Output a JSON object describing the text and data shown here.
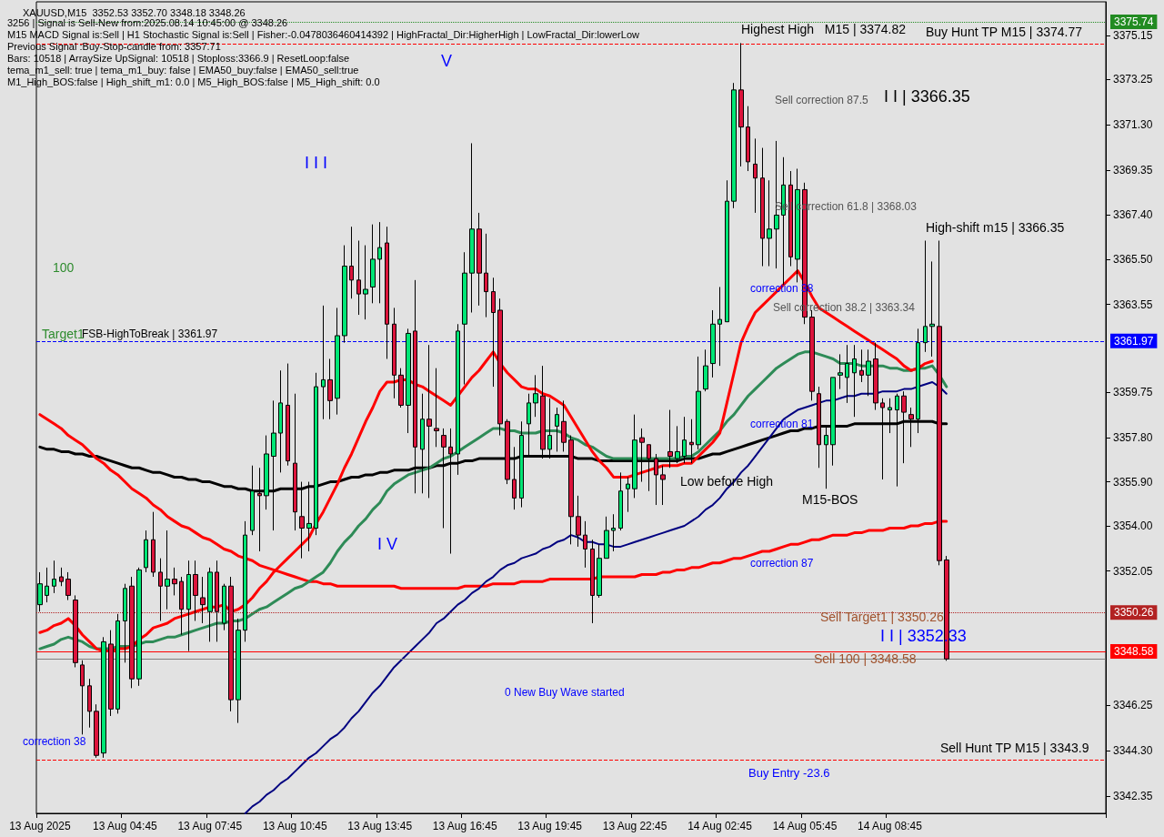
{
  "chart_data": {
    "type": "candlestick",
    "title": "XAUUSD,M15  3352.53 3352.70 3348.18 3348.26",
    "categories": [
      "13 Aug 2025",
      null,
      null,
      null,
      null,
      null,
      null,
      null,
      null,
      null,
      null,
      null,
      "13 Aug 04:45",
      null,
      null,
      null,
      null,
      null,
      null,
      null,
      null,
      null,
      null,
      null,
      "13 Aug 07:45",
      null,
      null,
      null,
      null,
      null,
      null,
      null,
      null,
      null,
      null,
      null,
      "13 Aug 10:45",
      null,
      null,
      null,
      null,
      null,
      null,
      null,
      null,
      null,
      null,
      null,
      "13 Aug 13:45",
      null,
      null,
      null,
      null,
      null,
      null,
      null,
      null,
      null,
      null,
      null,
      "13 Aug 16:45",
      null,
      null,
      null,
      null,
      null,
      null,
      null,
      null,
      null,
      null,
      null,
      "13 Aug 19:45",
      null,
      null,
      null,
      null,
      null,
      null,
      null,
      null,
      null,
      null,
      null,
      "13 Aug 22:45",
      null,
      null,
      null,
      null,
      null,
      null,
      null,
      null,
      null,
      null,
      null,
      "14 Aug 02:45",
      null,
      null,
      null,
      null,
      null,
      null,
      null,
      null,
      null,
      null,
      null,
      "14 Aug 05:45",
      null,
      null,
      null,
      null,
      null,
      null,
      null,
      null,
      null,
      null,
      null,
      "14 Aug 08:45",
      null,
      null,
      null,
      null,
      null,
      null,
      null,
      null
    ],
    "ohlc": [
      [
        3350.6,
        3352.0,
        3350.3,
        3351.5
      ],
      [
        3351.0,
        3352.2,
        3350.7,
        3351.4
      ],
      [
        3351.4,
        3352.5,
        3351.1,
        3351.7
      ],
      [
        3351.8,
        3352.2,
        3351.4,
        3351.6
      ],
      [
        3351.7,
        3352.0,
        3350.8,
        3351.0
      ],
      [
        3350.8,
        3351.0,
        3347.9,
        3348.1
      ],
      [
        3348.0,
        3348.2,
        3345.0,
        3347.1
      ],
      [
        3347.1,
        3347.4,
        3345.3,
        3346.0
      ],
      [
        3346.0,
        3346.3,
        3344.0,
        3344.1
      ],
      [
        3344.2,
        3349.2,
        3344.0,
        3349.0
      ],
      [
        3348.9,
        3349.5,
        3345.8,
        3346.1
      ],
      [
        3346.1,
        3350.2,
        3345.9,
        3349.9
      ],
      [
        3349.9,
        3351.5,
        3348.1,
        3351.3
      ],
      [
        3351.4,
        3351.8,
        3347.0,
        3347.4
      ],
      [
        3347.4,
        3352.2,
        3347.1,
        3352.1
      ],
      [
        3352.2,
        3353.8,
        3352.0,
        3353.4
      ],
      [
        3353.4,
        3354.6,
        3351.8,
        3352.0
      ],
      [
        3352.0,
        3352.6,
        3349.9,
        3351.4
      ],
      [
        3351.4,
        3353.8,
        3350.4,
        3351.7
      ],
      [
        3351.7,
        3352.2,
        3351.0,
        3351.5
      ],
      [
        3351.6,
        3351.8,
        3349.3,
        3350.4
      ],
      [
        3350.4,
        3352.5,
        3348.6,
        3351.9
      ],
      [
        3351.9,
        3352.5,
        3349.9,
        3351.0
      ],
      [
        3350.9,
        3351.8,
        3349.8,
        3350.6
      ],
      [
        3350.3,
        3352.2,
        3349.0,
        3352.0
      ],
      [
        3352.0,
        3352.5,
        3349.0,
        3350.3
      ],
      [
        3349.8,
        3351.5,
        3349.5,
        3351.4
      ],
      [
        3351.4,
        3351.8,
        3346.0,
        3346.5
      ],
      [
        3346.5,
        3350.0,
        3345.5,
        3349.5
      ],
      [
        3349.5,
        3354.2,
        3349.0,
        3353.6
      ],
      [
        3353.8,
        3356.6,
        3353.6,
        3355.5
      ],
      [
        3355.4,
        3356.5,
        3352.9,
        3355.3
      ],
      [
        3355.3,
        3357.9,
        3354.7,
        3357.1
      ],
      [
        3357.0,
        3359.4,
        3353.8,
        3358.0
      ],
      [
        3358.0,
        3360.7,
        3356.3,
        3359.3
      ],
      [
        3359.2,
        3361.0,
        3356.6,
        3356.8
      ],
      [
        3356.7,
        3359.7,
        3353.8,
        3354.6
      ],
      [
        3354.4,
        3355.9,
        3352.6,
        3353.9
      ],
      [
        3353.9,
        3355.9,
        3352.9,
        3354.1
      ],
      [
        3353.9,
        3360.6,
        3353.6,
        3360.0
      ],
      [
        3360.0,
        3363.5,
        3358.6,
        3360.3
      ],
      [
        3360.3,
        3361.2,
        3358.6,
        3359.4
      ],
      [
        3359.5,
        3363.4,
        3358.8,
        3362.2
      ],
      [
        3362.2,
        3366.1,
        3361.9,
        3365.2
      ],
      [
        3365.2,
        3366.9,
        3363.8,
        3364.6
      ],
      [
        3364.6,
        3366.3,
        3363.1,
        3364.0
      ],
      [
        3364.0,
        3366.1,
        3362.9,
        3364.2
      ],
      [
        3364.3,
        3367.0,
        3363.6,
        3365.5
      ],
      [
        3365.5,
        3367.1,
        3363.6,
        3366.0
      ],
      [
        3366.2,
        3366.9,
        3361.2,
        3362.7
      ],
      [
        3362.7,
        3363.4,
        3359.5,
        3360.5
      ],
      [
        3360.5,
        3360.8,
        3359.1,
        3359.2
      ],
      [
        3359.2,
        3362.5,
        3358.0,
        3362.3
      ],
      [
        3362.4,
        3364.6,
        3355.4,
        3357.4
      ],
      [
        3357.3,
        3359.7,
        3355.4,
        3358.6
      ],
      [
        3358.6,
        3361.8,
        3355.2,
        3358.3
      ],
      [
        3358.2,
        3360.8,
        3357.4,
        3358.1
      ],
      [
        3357.9,
        3358.2,
        3353.9,
        3357.4
      ],
      [
        3357.4,
        3358.2,
        3352.8,
        3357.1
      ],
      [
        3357.1,
        3362.7,
        3356.2,
        3362.4
      ],
      [
        3362.7,
        3365.8,
        3360.1,
        3364.9
      ],
      [
        3364.9,
        3370.5,
        3363.2,
        3366.8
      ],
      [
        3366.8,
        3367.5,
        3363.5,
        3364.9
      ],
      [
        3364.9,
        3366.6,
        3363.0,
        3364.1
      ],
      [
        3364.1,
        3364.7,
        3360.0,
        3363.2
      ],
      [
        3363.3,
        3363.8,
        3357.9,
        3358.4
      ],
      [
        3358.5,
        3358.6,
        3355.8,
        3356.0
      ],
      [
        3356.0,
        3357.4,
        3354.7,
        3355.2
      ],
      [
        3355.2,
        3358.5,
        3354.8,
        3357.9
      ],
      [
        3358.4,
        3359.7,
        3357.0,
        3359.3
      ],
      [
        3359.3,
        3360.5,
        3358.7,
        3359.7
      ],
      [
        3359.6,
        3360.9,
        3356.9,
        3357.3
      ],
      [
        3357.3,
        3359.5,
        3356.9,
        3357.9
      ],
      [
        3358.3,
        3359.1,
        3357.2,
        3358.8
      ],
      [
        3358.5,
        3359.4,
        3357.2,
        3357.6
      ],
      [
        3357.7,
        3357.9,
        3353.2,
        3354.4
      ],
      [
        3354.4,
        3355.3,
        3353.1,
        3353.6
      ],
      [
        3353.6,
        3354.2,
        3352.2,
        3353.0
      ],
      [
        3353.0,
        3353.4,
        3349.8,
        3351.0
      ],
      [
        3351.0,
        3353.2,
        3350.9,
        3352.6
      ],
      [
        3352.6,
        3354.4,
        3352.6,
        3353.8
      ],
      [
        3353.8,
        3354.5,
        3352.9,
        3353.9
      ],
      [
        3353.9,
        3356.3,
        3353.8,
        3355.5
      ],
      [
        3355.6,
        3356.1,
        3354.6,
        3355.8
      ],
      [
        3355.6,
        3358.8,
        3355.2,
        3357.7
      ],
      [
        3357.8,
        3358.2,
        3355.9,
        3357.6
      ],
      [
        3357.5,
        3357.5,
        3355.5,
        3356.9
      ],
      [
        3356.9,
        3357.1,
        3354.9,
        3356.2
      ],
      [
        3356.2,
        3356.6,
        3354.9,
        3356.0
      ],
      [
        3357.2,
        3359.0,
        3356.5,
        3357.0
      ],
      [
        3356.9,
        3358.3,
        3356.7,
        3357.2
      ],
      [
        3357.0,
        3358.7,
        3356.7,
        3357.7
      ],
      [
        3357.6,
        3358.6,
        3356.7,
        3357.5
      ],
      [
        3357.5,
        3361.3,
        3357.3,
        3359.8
      ],
      [
        3359.9,
        3361.6,
        3359.8,
        3360.9
      ],
      [
        3361.0,
        3363.3,
        3360.4,
        3362.7
      ],
      [
        3362.7,
        3364.3,
        3360.9,
        3362.9
      ],
      [
        3362.8,
        3368.9,
        3362.8,
        3368.0
      ],
      [
        3368.0,
        3373.1,
        3367.7,
        3372.8
      ],
      [
        3372.8,
        3374.82,
        3369.5,
        3371.2
      ],
      [
        3371.2,
        3372.1,
        3369.3,
        3369.7
      ],
      [
        3369.6,
        3370.7,
        3367.5,
        3369.0
      ],
      [
        3369.0,
        3370.3,
        3365.2,
        3366.4
      ],
      [
        3366.4,
        3368.9,
        3365.2,
        3366.8
      ],
      [
        3366.8,
        3370.6,
        3365.1,
        3367.4
      ],
      [
        3367.4,
        3369.9,
        3364.4,
        3368.7
      ],
      [
        3368.7,
        3369.3,
        3365.2,
        3365.6
      ],
      [
        3365.5,
        3369.4,
        3364.5,
        3368.5
      ],
      [
        3368.5,
        3368.8,
        3362.7,
        3363.0
      ],
      [
        3363.0,
        3363.3,
        3359.4,
        3359.8
      ],
      [
        3359.7,
        3360.0,
        3356.5,
        3357.5
      ],
      [
        3357.5,
        3358.3,
        3355.6,
        3357.9
      ],
      [
        3357.5,
        3360.4,
        3356.6,
        3360.4
      ],
      [
        3360.5,
        3361.4,
        3359.9,
        3360.6
      ],
      [
        3360.4,
        3361.8,
        3359.3,
        3361.0
      ],
      [
        3360.6,
        3361.8,
        3358.7,
        3361.2
      ],
      [
        3360.7,
        3361.6,
        3360.2,
        3360.5
      ],
      [
        3360.5,
        3361.6,
        3359.6,
        3361.1
      ],
      [
        3361.2,
        3361.9,
        3359.0,
        3359.3
      ],
      [
        3359.3,
        3359.5,
        3356.0,
        3359.1
      ],
      [
        3359.0,
        3359.5,
        3358.0,
        3359.1
      ],
      [
        3359.0,
        3359.7,
        3355.7,
        3359.6
      ],
      [
        3359.6,
        3359.8,
        3356.7,
        3358.9
      ],
      [
        3358.8,
        3359.1,
        3357.4,
        3358.6
      ],
      [
        3358.6,
        3362.5,
        3358.0,
        3361.9
      ],
      [
        3361.9,
        3366.3,
        3361.5,
        3362.6
      ],
      [
        3362.6,
        3365.4,
        3361.3,
        3362.7
      ],
      [
        3362.6,
        3366.3,
        3352.3,
        3352.5
      ],
      [
        3352.53,
        3352.7,
        3348.18,
        3348.26
      ]
    ],
    "series": [
      {
        "type": "line",
        "color": "#000000",
        "values": [
          3357.4,
          3357.3,
          3357.3,
          3357.2,
          3357.2,
          3357.1,
          3357.1,
          3357.0,
          3357.0,
          3356.9,
          3356.8,
          3356.7,
          3356.6,
          3356.5,
          3356.5,
          3356.4,
          3356.3,
          3356.3,
          3356.2,
          3356.1,
          3356.1,
          3356.0,
          3356.0,
          3355.9,
          3355.9,
          3355.8,
          3355.7,
          3355.7,
          3355.6,
          3355.6,
          3355.5,
          3355.5,
          3355.5,
          3355.5,
          3355.6,
          3355.6,
          3355.6,
          3355.6,
          3355.7,
          3355.7,
          3355.8,
          3355.9,
          3355.9,
          3356.0,
          3356.1,
          3356.1,
          3356.2,
          3356.2,
          3356.3,
          3356.3,
          3356.4,
          3356.4,
          3356.4,
          3356.5,
          3356.5,
          3356.5,
          3356.6,
          3356.6,
          3356.7,
          3356.7,
          3356.8,
          3356.8,
          3356.9,
          3356.9,
          3356.9,
          3356.9,
          3356.9,
          3356.9,
          3357.0,
          3357.0,
          3357.0,
          3357.0,
          3357.0,
          3357.0,
          3357.0,
          3357.0,
          3356.9,
          3356.9,
          3356.9,
          3356.8,
          3356.8,
          3356.8,
          3356.8,
          3356.8,
          3356.8,
          3356.8,
          3356.8,
          3356.8,
          3356.8,
          3356.8,
          3356.8,
          3356.9,
          3356.9,
          3356.9,
          3357.0,
          3357.1,
          3357.1,
          3357.2,
          3357.3,
          3357.4,
          3357.5,
          3357.6,
          3357.7,
          3357.8,
          3357.9,
          3358.0,
          3358.1,
          3358.1,
          3358.2,
          3358.2,
          3358.3,
          3358.3,
          3358.3,
          3358.3,
          3358.3,
          3358.4,
          3358.4,
          3358.4,
          3358.4,
          3358.4,
          3358.4,
          3358.4,
          3358.5,
          3358.5,
          3358.5,
          3358.5,
          3358.5,
          3358.4,
          3358.4
        ]
      },
      {
        "type": "line",
        "color": "#ff0000",
        "values": [
          3358.8,
          3358.6,
          3358.4,
          3358.2,
          3357.9,
          3357.7,
          3357.5,
          3357.2,
          3356.9,
          3356.7,
          3356.4,
          3356.2,
          3355.9,
          3355.6,
          3355.4,
          3355.2,
          3354.9,
          3354.7,
          3354.4,
          3354.2,
          3354.0,
          3353.9,
          3353.7,
          3353.5,
          3353.4,
          3353.2,
          3353.0,
          3352.9,
          3352.7,
          3352.6,
          3352.5,
          3352.3,
          3352.2,
          3352.1,
          3352.0,
          3351.9,
          3351.8,
          3351.7,
          3351.6,
          3351.6,
          3351.5,
          3351.5,
          3351.4,
          3351.4,
          3351.4,
          3351.4,
          3351.4,
          3351.4,
          3351.4,
          3351.4,
          3351.4,
          3351.3,
          3351.3,
          3351.3,
          3351.3,
          3351.3,
          3351.3,
          3351.3,
          3351.3,
          3351.3,
          3351.4,
          3351.4,
          3351.4,
          3351.4,
          3351.5,
          3351.5,
          3351.5,
          3351.5,
          3351.6,
          3351.6,
          3351.6,
          3351.6,
          3351.7,
          3351.7,
          3351.7,
          3351.7,
          3351.7,
          3351.7,
          3351.7,
          3351.8,
          3351.8,
          3351.8,
          3351.8,
          3351.8,
          3351.8,
          3351.9,
          3351.9,
          3351.9,
          3352.0,
          3352.0,
          3352.1,
          3352.1,
          3352.2,
          3352.2,
          3352.3,
          3352.4,
          3352.4,
          3352.5,
          3352.6,
          3352.6,
          3352.7,
          3352.8,
          3352.9,
          3352.9,
          3353.0,
          3353.1,
          3353.2,
          3353.2,
          3353.3,
          3353.4,
          3353.4,
          3353.5,
          3353.6,
          3353.6,
          3353.6,
          3353.7,
          3353.7,
          3353.8,
          3353.8,
          3353.8,
          3353.9,
          3353.9,
          3353.9,
          3354.0,
          3354.0,
          3354.1,
          3354.1,
          3354.2,
          3354.2
        ]
      },
      {
        "type": "line",
        "color": "#000080",
        "values": [
          null,
          null,
          null,
          null,
          null,
          null,
          null,
          null,
          null,
          null,
          null,
          null,
          null,
          null,
          null,
          null,
          null,
          null,
          null,
          null,
          null,
          null,
          null,
          null,
          null,
          null,
          null,
          null,
          null,
          3341.6,
          3341.9,
          3342.1,
          3342.4,
          3342.6,
          3342.9,
          3343.1,
          3343.4,
          3343.7,
          3344.0,
          3344.2,
          3344.5,
          3344.8,
          3345.0,
          3345.3,
          3345.7,
          3346.0,
          3346.4,
          3346.8,
          3347.1,
          3347.5,
          3347.9,
          3348.2,
          3348.5,
          3348.8,
          3349.1,
          3349.4,
          3349.8,
          3350.0,
          3350.3,
          3350.6,
          3350.8,
          3351.1,
          3351.3,
          3351.6,
          3351.8,
          3352.1,
          3352.3,
          3352.4,
          3352.6,
          3352.7,
          3352.8,
          3353.0,
          3353.1,
          3353.3,
          3353.4,
          3353.6,
          3353.5,
          3353.3,
          3353.3,
          3353.2,
          3353.2,
          3353.1,
          3353.1,
          3353.2,
          3353.3,
          3353.4,
          3353.5,
          3353.6,
          3353.7,
          3353.8,
          3353.9,
          3354.0,
          3354.2,
          3354.4,
          3354.7,
          3354.9,
          3355.2,
          3355.6,
          3355.9,
          3356.3,
          3356.6,
          3357.0,
          3357.4,
          3357.8,
          3358.2,
          3358.6,
          3358.8,
          3359.0,
          3359.1,
          3359.2,
          3359.3,
          3359.4,
          3359.4,
          3359.5,
          3359.6,
          3359.6,
          3359.7,
          3359.7,
          3359.7,
          3359.8,
          3359.8,
          3359.8,
          3359.9,
          3359.9,
          3360.0,
          3360.1,
          3360.2,
          3360.0,
          3359.7
        ]
      },
      {
        "type": "line",
        "color": "#2e8b57",
        "values": [
          3348.7,
          3348.8,
          3348.9,
          3349.1,
          3349.2,
          3349.1,
          3349.0,
          3348.8,
          3348.7,
          3348.7,
          3348.7,
          3348.8,
          3348.8,
          3348.8,
          3348.9,
          3349.0,
          3349.0,
          3349.1,
          3349.2,
          3349.2,
          3349.3,
          3349.4,
          3349.5,
          3349.6,
          3349.7,
          3349.8,
          3349.8,
          3349.9,
          3349.9,
          3350.0,
          3350.2,
          3350.4,
          3350.5,
          3350.7,
          3350.9,
          3351.1,
          3351.3,
          3351.4,
          3351.6,
          3351.8,
          3352.0,
          3352.4,
          3352.9,
          3353.3,
          3353.6,
          3354.0,
          3354.3,
          3354.7,
          3355.0,
          3355.5,
          3355.8,
          3356.0,
          3356.2,
          3356.3,
          3356.4,
          3356.5,
          3356.7,
          3356.9,
          3357.0,
          3357.2,
          3357.4,
          3357.6,
          3357.8,
          3358.0,
          3358.2,
          3358.2,
          3358.1,
          3358.1,
          3358.0,
          3358.0,
          3358.0,
          3358.1,
          3358.1,
          3358.1,
          3358.0,
          3357.8,
          3357.7,
          3357.5,
          3357.4,
          3357.2,
          3357.0,
          3356.9,
          3356.9,
          3356.9,
          3356.9,
          3356.9,
          3356.9,
          3356.9,
          3356.9,
          3356.9,
          3356.9,
          3357.0,
          3357.0,
          3357.2,
          3357.5,
          3357.8,
          3358.1,
          3358.5,
          3358.8,
          3359.2,
          3359.6,
          3359.9,
          3360.2,
          3360.5,
          3360.8,
          3361.0,
          3361.2,
          3361.4,
          3361.5,
          3361.5,
          3361.4,
          3361.3,
          3361.2,
          3361.0,
          3361.0,
          3361.0,
          3360.9,
          3360.9,
          3360.9,
          3360.9,
          3360.8,
          3360.8,
          3360.7,
          3360.7,
          3360.8,
          3360.8,
          3360.9,
          3360.5,
          3360.0
        ]
      },
      {
        "type": "line",
        "color": "#ff0000",
        "values": [
          3349.4,
          3349.5,
          3349.7,
          3349.8,
          3350.0,
          3349.7,
          3349.3,
          3349.0,
          3348.7,
          3348.6,
          3348.6,
          3348.7,
          3348.7,
          3348.8,
          3349.1,
          3349.3,
          3349.6,
          3349.7,
          3349.8,
          3350.0,
          3350.1,
          3350.2,
          3350.3,
          3350.4,
          3350.5,
          3350.5,
          3350.6,
          3350.3,
          3350.4,
          3350.6,
          3350.9,
          3351.3,
          3351.6,
          3352.0,
          3352.3,
          3352.6,
          3352.9,
          3353.2,
          3353.5,
          3354.1,
          3354.6,
          3355.2,
          3355.8,
          3356.5,
          3357.1,
          3357.8,
          3358.5,
          3359.1,
          3359.8,
          3360.2,
          3360.2,
          3360.3,
          3360.3,
          3360.1,
          3360.0,
          3359.8,
          3359.6,
          3359.4,
          3359.2,
          3359.6,
          3360.0,
          3360.4,
          3360.7,
          3361.1,
          3361.5,
          3361.0,
          3360.6,
          3360.3,
          3360.0,
          3359.9,
          3359.9,
          3359.7,
          3359.6,
          3359.4,
          3359.2,
          3358.7,
          3358.2,
          3357.7,
          3357.2,
          3356.8,
          3356.5,
          3356.1,
          3356.1,
          3356.1,
          3356.2,
          3356.3,
          3356.4,
          3356.5,
          3356.6,
          3356.6,
          3356.6,
          3356.7,
          3356.7,
          3357.0,
          3357.3,
          3357.6,
          3358.0,
          3359.3,
          3360.6,
          3361.9,
          3362.6,
          3363.2,
          3363.5,
          3363.8,
          3364.1,
          3364.4,
          3364.7,
          3365.0,
          3364.5,
          3363.9,
          3363.4,
          3363.2,
          3363.0,
          3362.8,
          3362.6,
          3362.4,
          3362.2,
          3362.0,
          3361.8,
          3361.6,
          3361.4,
          3361.2,
          3360.9,
          3360.7,
          3360.8,
          3361.0,
          3361.1,
          null,
          null
        ]
      }
    ],
    "ylim": [
      3341.6,
      3376.6
    ],
    "yticks": [
      {
        "value": 3342.35,
        "label": "3342.35"
      },
      {
        "value": 3344.3,
        "label": "3344.30"
      },
      {
        "value": 3346.25,
        "label": "3346.25"
      },
      {
        "value": 3352.05,
        "label": "3352.05"
      },
      {
        "value": 3354.0,
        "label": "3354.00"
      },
      {
        "value": 3355.9,
        "label": "3355.90"
      },
      {
        "value": 3357.8,
        "label": "3357.80"
      },
      {
        "value": 3359.75,
        "label": "3359.75"
      },
      {
        "value": 3363.55,
        "label": "3363.55"
      },
      {
        "value": 3365.5,
        "label": "3365.50"
      },
      {
        "value": 3367.4,
        "label": "3367.40"
      },
      {
        "value": 3369.35,
        "label": "3369.35"
      },
      {
        "value": 3371.3,
        "label": "3371.30"
      },
      {
        "value": 3373.25,
        "label": "3373.25"
      },
      {
        "value": 3375.15,
        "label": "3375.15"
      }
    ],
    "ref_lines": [
      {
        "axis": "y",
        "value": 3375.74,
        "label": "3375.74",
        "color": "#228b22",
        "line_style": "dotted"
      },
      {
        "axis": "y",
        "value": 3374.77,
        "color": "#ff0000",
        "line_style": "dashed"
      },
      {
        "axis": "y",
        "value": 3361.97,
        "label": "3361.97",
        "color": "#0000ff",
        "line_style": "dashed"
      },
      {
        "axis": "y",
        "value": 3350.26,
        "label": "3350.26",
        "color": "#b22222",
        "line_style": "dotted"
      },
      {
        "axis": "y",
        "value": 3348.58,
        "label": "3348.58",
        "color": "#ff0000",
        "line_style": "solid"
      },
      {
        "axis": "y",
        "value": 3348.26,
        "color": "#808080",
        "line_style": "solid"
      },
      {
        "axis": "y",
        "value": 3343.9,
        "color": "#ff0000",
        "line_style": "dashed"
      }
    ],
    "annotations": [
      "3256 | Signal is Sell-New from:2025.08.14 10:45:00 @ 3348.26",
      "M15 MACD Signal is:Sell | H1 Stochastic Signal is:Sell | Fisher:-0.0478036460414392 | HighFractal_Dir:HigherHigh | LowFractal_Dir:lowerLow",
      "Previous Signal :Buy-Stop-candle from: 3357.71",
      "Bars: 10518 | ArraySize UpSignal: 10518 | Stoploss:3366.9 | ResetLoop:false",
      "tema_m1_sell: true | tema_m1_buy: false | EMA50_buy:false | EMA50_sell:true",
      "M1_High_BOS:false | High_shift_m1: 0.0 | M5_High_BOS:false | M5_High_shift: 0.0",
      "100",
      "Target1",
      "FSB-HighToBreak | 3361.97",
      "I I I",
      "V",
      "I V",
      "Highest High   M15 | 3374.82",
      "Buy Hunt TP M15 | 3374.77",
      "Sell correction 87.5",
      "I I | 3366.35",
      "Sell correction 61.8 | 3368.03",
      "High-shift m15 | 3366.35",
      "correction 38",
      "Sell correction 38.2 | 3363.34",
      "correction 81",
      "Low before High",
      "M15-BOS",
      "correction 87",
      "Sell Target1 | 3350.26",
      "I I | 3352.33",
      "Sell 100 | 3348.58",
      "0 New Buy Wave started",
      "Buy Entry -23.6",
      "Sell Hunt TP M15 | 3343.9",
      "correction 38"
    ],
    "grid": false,
    "marker": "none",
    "line_style": "solid"
  }
}
